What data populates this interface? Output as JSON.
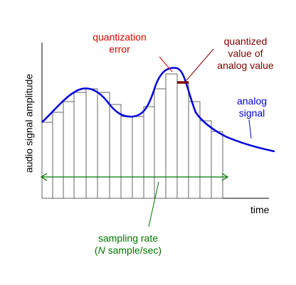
{
  "labels": {
    "ylabel": "audio signal amplitude",
    "xlabel": "time",
    "quantization_error": [
      "quantization",
      "error"
    ],
    "quantized_value": [
      "quantized",
      "value of",
      "analog value"
    ],
    "analog_signal": [
      "analog",
      "signal"
    ],
    "sampling_rate_line1": "sampling rate",
    "sampling_rate_n": "N",
    "sampling_rate_rest": " sample/sec)",
    "sampling_rate_open": "("
  },
  "colors": {
    "analog": "#0000dd",
    "quantization_error": "#dd0000",
    "quantized_value": "#800000",
    "sampling": "#007700",
    "bars": "#666666",
    "axes": "#000000"
  }
}
